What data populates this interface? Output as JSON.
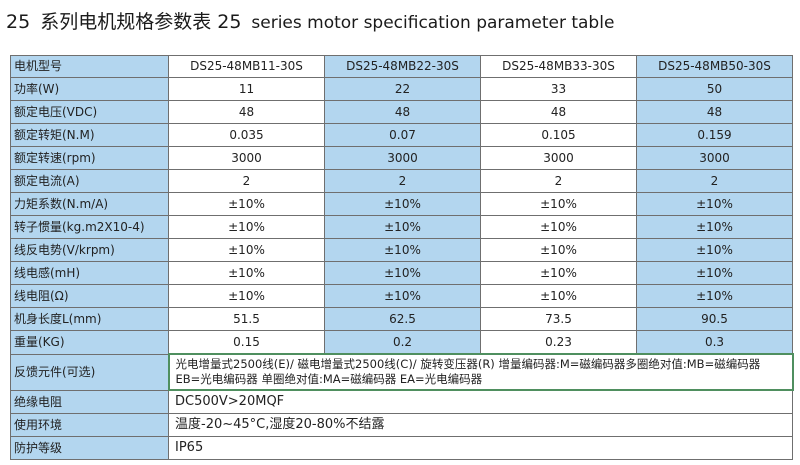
{
  "title": {
    "number": "25",
    "cn": "系列电机规格参数表 25",
    "en": "series motor specification parameter table"
  },
  "table": {
    "header_label": "电机型号",
    "models": [
      "DS25-48MB11-30S",
      "DS25-48MB22-30S",
      "DS25-48MB33-30S",
      "DS25-48MB50-30S"
    ],
    "rows": [
      {
        "label": "功率(W)",
        "values": [
          "11",
          "22",
          "33",
          "50"
        ]
      },
      {
        "label": "额定电压(VDC)",
        "values": [
          "48",
          "48",
          "48",
          "48"
        ]
      },
      {
        "label": "额定转矩(N.M)",
        "values": [
          "0.035",
          "0.07",
          "0.105",
          "0.159"
        ]
      },
      {
        "label": "额定转速(rpm)",
        "values": [
          "3000",
          "3000",
          "3000",
          "3000"
        ]
      },
      {
        "label": "额定电流(A)",
        "values": [
          "2",
          "2",
          "2",
          "2"
        ]
      },
      {
        "label": "力矩系数(N.m/A)",
        "values": [
          "±10%",
          "±10%",
          "±10%",
          "±10%"
        ]
      },
      {
        "label": "转子惯量(kg.m2X10-4)",
        "values": [
          "±10%",
          "±10%",
          "±10%",
          "±10%"
        ]
      },
      {
        "label": "线反电势(V/krpm)",
        "values": [
          "±10%",
          "±10%",
          "±10%",
          "±10%"
        ]
      },
      {
        "label": "线电感(mH)",
        "values": [
          "±10%",
          "±10%",
          "±10%",
          "±10%"
        ]
      },
      {
        "label": "线电阻(Ω)",
        "values": [
          "±10%",
          "±10%",
          "±10%",
          "±10%"
        ]
      },
      {
        "label": "机身长度L(mm)",
        "values": [
          "51.5",
          "62.5",
          "73.5",
          "90.5"
        ]
      },
      {
        "label": "重量(KG)",
        "values": [
          "0.15",
          "0.2",
          "0.23",
          "0.3"
        ]
      }
    ],
    "feedback": {
      "label": "反馈元件(可选)",
      "line1": "光电增量式2500线(E)/ 磁电增量式2500线(C)/ 旋转变压器(R)  增量编码器:M=磁编码器多圈绝对值:MB=磁编码器",
      "line2": "EB=光电编码器   单圈绝对值:MA=磁编码器   EA=光电编码器"
    },
    "insulation": {
      "label": "绝缘电阻",
      "value": "DC500V>20MQF"
    },
    "environment": {
      "label": "使用环境",
      "value": "温度-20~45°C,湿度20-80%不结露"
    },
    "protection": {
      "label": "防护等级",
      "value": "IP65"
    }
  }
}
